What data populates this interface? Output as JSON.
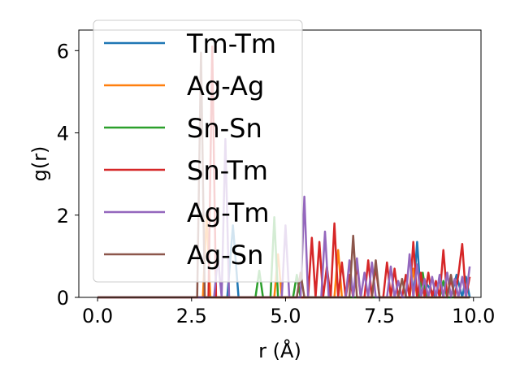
{
  "chart_data": {
    "type": "line",
    "xlabel": "r (Å)",
    "ylabel": "g(r)",
    "xlim": [
      -0.5,
      10.2
    ],
    "ylim": [
      0,
      6.5
    ],
    "xticks": [
      0.0,
      2.5,
      5.0,
      7.5,
      10.0
    ],
    "xtick_labels": [
      "0.0",
      "2.5",
      "5.0",
      "7.5",
      "10.0"
    ],
    "yticks": [
      0,
      2,
      4,
      6
    ],
    "ytick_labels": [
      "0",
      "2",
      "4",
      "6"
    ],
    "legend_position": "top-left",
    "grid": false,
    "series": [
      {
        "name": "Tm-Tm",
        "color": "#1f77b4",
        "x": [
          0,
          3.45,
          3.6,
          3.75,
          3.9,
          4.0,
          8.4,
          8.5,
          8.6,
          8.7,
          9.0,
          9.1,
          9.2,
          9.4,
          9.55,
          9.7,
          9.8,
          9.9
        ],
        "y": [
          0,
          0,
          1.75,
          0,
          0,
          0,
          0,
          1.35,
          0,
          0.4,
          0,
          0.5,
          0,
          0,
          0.55,
          0,
          0.5,
          0
        ]
      },
      {
        "name": "Ag-Ag",
        "color": "#ff7f0e",
        "x": [
          0,
          2.8,
          2.9,
          3.0,
          3.1,
          4.7,
          4.8,
          4.9,
          6.3,
          6.4,
          6.5,
          8.3,
          8.4,
          8.5,
          9.2,
          9.3,
          9.4,
          9.9
        ],
        "y": [
          0,
          0,
          2.0,
          0,
          0,
          0,
          1.05,
          0,
          0,
          1.15,
          0,
          0,
          0.7,
          0,
          0,
          0.6,
          0,
          0
        ]
      },
      {
        "name": "Sn-Sn",
        "color": "#2ca02c",
        "x": [
          0,
          4.2,
          4.3,
          4.4,
          4.6,
          4.7,
          4.8,
          5.2,
          5.3,
          5.4,
          8.55,
          8.65,
          8.75,
          9.1,
          9.2,
          9.3,
          9.9
        ],
        "y": [
          0,
          0,
          0.65,
          0,
          0,
          1.95,
          0,
          0,
          0.55,
          0,
          0,
          0.6,
          0,
          0,
          0.4,
          0,
          0
        ]
      },
      {
        "name": "Sn-Tm",
        "color": "#d62728",
        "x": [
          0,
          2.95,
          3.05,
          3.15,
          3.25,
          5.6,
          5.7,
          5.8,
          5.9,
          6.0,
          6.1,
          6.2,
          6.3,
          6.4,
          6.5,
          6.6,
          6.7,
          6.8,
          6.9,
          7.0,
          7.1,
          7.2,
          7.3,
          7.4,
          7.5,
          7.6,
          7.7,
          7.8,
          7.9,
          8.0,
          8.1,
          8.2,
          8.3,
          8.4,
          8.5,
          8.6,
          8.7,
          8.8,
          8.9,
          9.0,
          9.1,
          9.2,
          9.3,
          9.4,
          9.5,
          9.6,
          9.7,
          9.8,
          9.9
        ],
        "y": [
          0,
          0,
          6.1,
          0,
          0,
          0,
          1.45,
          0,
          1.35,
          0,
          0.75,
          0,
          1.8,
          0,
          0.85,
          0,
          0.55,
          0,
          0.8,
          0,
          0,
          0.9,
          0,
          0.75,
          0,
          0,
          0.85,
          0,
          0.7,
          0,
          0,
          0.55,
          0,
          1.35,
          0,
          0.6,
          0,
          0.6,
          0,
          0.4,
          0,
          1.15,
          0,
          0.45,
          0,
          0.55,
          1.3,
          0,
          0.5
        ]
      },
      {
        "name": "Ag-Tm",
        "color": "#9467bd",
        "x": [
          0,
          3.1,
          3.2,
          3.3,
          3.4,
          3.5,
          3.6,
          4.9,
          5.0,
          5.1,
          5.4,
          5.5,
          5.6,
          5.95,
          6.05,
          6.15,
          6.6,
          6.7,
          6.8,
          6.9,
          7.0,
          7.1,
          7.2,
          7.3,
          7.4,
          7.5,
          7.7,
          7.8,
          7.9,
          8.0,
          8.1,
          8.2,
          8.3,
          8.4,
          8.5,
          8.6,
          8.7,
          8.8,
          8.9,
          9.0,
          9.1,
          9.2,
          9.3,
          9.4,
          9.5,
          9.6,
          9.7,
          9.8,
          9.9
        ],
        "y": [
          0,
          0,
          1.0,
          0,
          3.85,
          0,
          0,
          0,
          1.75,
          0,
          0,
          2.45,
          0,
          0,
          1.6,
          0,
          0,
          0.9,
          0,
          0.95,
          0,
          0.6,
          0,
          0.85,
          0,
          0,
          0,
          0.75,
          0,
          0.4,
          0,
          0,
          1.05,
          0,
          0.8,
          0,
          0.45,
          0,
          0.5,
          0,
          0.55,
          0,
          0.6,
          0,
          0.45,
          0,
          0.5,
          0,
          0.75
        ]
      },
      {
        "name": "Ag-Sn",
        "color": "#8c564b",
        "x": [
          0,
          2.65,
          2.75,
          2.85,
          2.95,
          5.3,
          5.4,
          5.5,
          6.7,
          6.8,
          6.9,
          7.0,
          7.3,
          7.4,
          7.5,
          8.0,
          8.1,
          8.2,
          9.3,
          9.4,
          9.5,
          9.9
        ],
        "y": [
          0,
          0,
          5.95,
          0,
          0,
          0,
          0.6,
          0,
          0,
          1.5,
          0,
          0,
          0,
          0.9,
          0,
          0,
          0.45,
          0,
          0,
          0.55,
          0,
          0
        ]
      }
    ]
  }
}
